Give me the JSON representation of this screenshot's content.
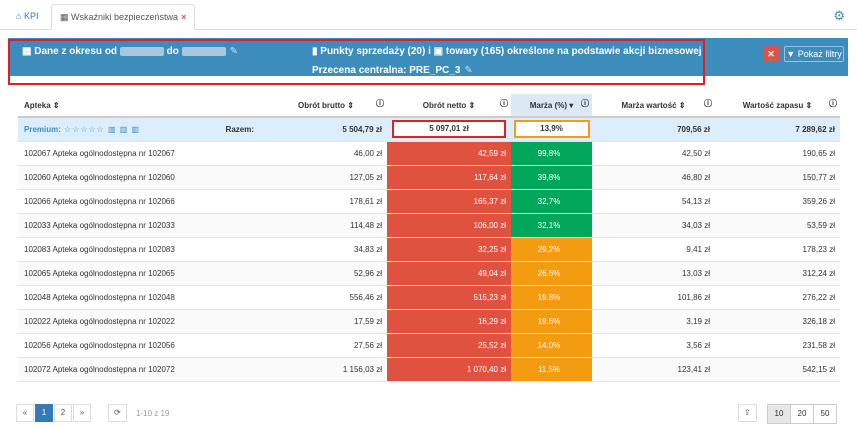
{
  "tabs": [
    {
      "label": "KPI"
    },
    {
      "label": "Wskaźniki bezpieczeństwa"
    }
  ],
  "banner": {
    "left_prefix": "Dane z okresu od",
    "left_mid": "do",
    "center": "Punkty sprzedaży (20) i",
    "center2": "towary (165) określone na podstawie akcji biznesowej",
    "line2": "Przecena centralna: PRE_PC_3"
  },
  "buttons": {
    "filters": "Pokaż filtry"
  },
  "table": {
    "headers": [
      "Apteka",
      "Obrót brutto",
      "Obrót netto",
      "Marża (%)",
      "Marża wartość",
      "Wartość zapasu"
    ],
    "summary": {
      "premium": "Premium:",
      "razem": "Razem:",
      "brutto": "5 504,79 zł",
      "netto": "5 097,01 zł",
      "marza": "13,9%",
      "marza_wartosc": "709,56 zł",
      "zapas": "7 289,62 zł"
    },
    "rows": [
      {
        "name": "102067 Apteka ogólnodostępna nr 102067",
        "brutto": "46,00 zł",
        "netto": "42,59 zł",
        "marza": "99,8%",
        "mw": "42,50 zł",
        "zapas": "190,65 zł",
        "color": "green"
      },
      {
        "name": "102060 Apteka ogólnodostępna nr 102060",
        "brutto": "127,05 zł",
        "netto": "117,64 zł",
        "marza": "39,8%",
        "mw": "46,80 zł",
        "zapas": "150,77 zł",
        "color": "green"
      },
      {
        "name": "102066 Apteka ogólnodostępna nr 102066",
        "brutto": "178,61 zł",
        "netto": "165,37 zł",
        "marza": "32,7%",
        "mw": "54,13 zł",
        "zapas": "359,26 zł",
        "color": "green"
      },
      {
        "name": "102033 Apteka ogólnodostępna nr 102033",
        "brutto": "114,48 zł",
        "netto": "106,00 zł",
        "marza": "32,1%",
        "mw": "34,03 zł",
        "zapas": "53,59 zł",
        "color": "green"
      },
      {
        "name": "102083 Apteka ogólnodostępna nr 102083",
        "brutto": "34,83 zł",
        "netto": "32,25 zł",
        "marza": "29,2%",
        "mw": "9,41 zł",
        "zapas": "178,23 zł",
        "color": "orange"
      },
      {
        "name": "102065 Apteka ogólnodostępna nr 102065",
        "brutto": "52,96 zł",
        "netto": "49,04 zł",
        "marza": "26,6%",
        "mw": "13,03 zł",
        "zapas": "312,24 zł",
        "color": "orange"
      },
      {
        "name": "102048 Apteka ogólnodostępna nr 102048",
        "brutto": "556,46 zł",
        "netto": "515,23 zł",
        "marza": "19,8%",
        "mw": "101,86 zł",
        "zapas": "276,22 zł",
        "color": "orange"
      },
      {
        "name": "102022 Apteka ogólnodostępna nr 102022",
        "brutto": "17,59 zł",
        "netto": "16,29 zł",
        "marza": "19,6%",
        "mw": "3,19 zł",
        "zapas": "326,18 zł",
        "color": "orange"
      },
      {
        "name": "102056 Apteka ogólnodostępna nr 102056",
        "brutto": "27,56 zł",
        "netto": "25,52 zł",
        "marza": "14,0%",
        "mw": "3,56 zł",
        "zapas": "231,58 zł",
        "color": "orange"
      },
      {
        "name": "102072 Apteka ogólnodostępna nr 102072",
        "brutto": "1 156,03 zł",
        "netto": "1 070,40 zł",
        "marza": "11,5%",
        "mw": "123,41 zł",
        "zapas": "542,15 zł",
        "color": "orange"
      }
    ]
  },
  "pager": {
    "prev": "«",
    "pages": [
      "1",
      "2"
    ],
    "next": "»",
    "info": "1-10 z 19",
    "sizes": [
      "10",
      "20",
      "50"
    ]
  }
}
